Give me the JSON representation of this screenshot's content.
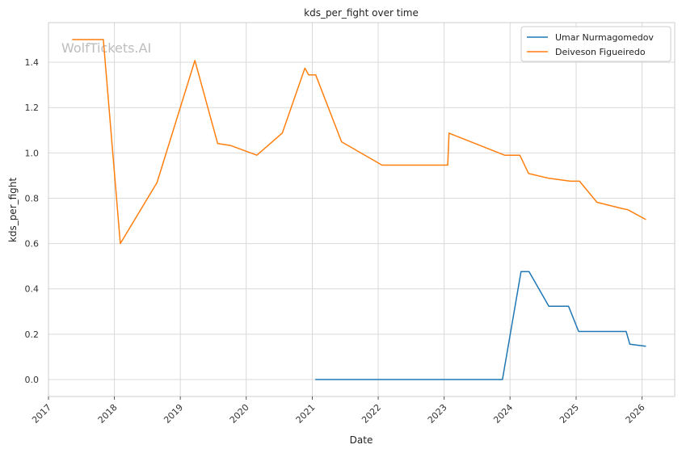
{
  "chart_data": {
    "type": "line",
    "title": "kds_per_fight over time",
    "xlabel": "Date",
    "ylabel": "kds_per_fight",
    "watermark": "WolfTickets.AI",
    "x_ticks": [
      "2017",
      "2018",
      "2019",
      "2020",
      "2021",
      "2022",
      "2023",
      "2024",
      "2025",
      "2026"
    ],
    "y_ticks": [
      "0.0",
      "0.2",
      "0.4",
      "0.6",
      "0.8",
      "1.0",
      "1.2",
      "1.4"
    ],
    "xlim": [
      "2017-01-01",
      "2026-07-01"
    ],
    "ylim": [
      -0.075,
      1.575
    ],
    "grid": true,
    "legend_position": "top-right",
    "series": [
      {
        "name": "Umar Nurmagomedov",
        "color": "#1f77b4",
        "points": [
          [
            "2021-01-20",
            0.0
          ],
          [
            "2023-11-20",
            0.0
          ],
          [
            "2024-03-02",
            0.476
          ],
          [
            "2024-04-15",
            0.476
          ],
          [
            "2024-08-03",
            0.323
          ],
          [
            "2024-11-20",
            0.323
          ],
          [
            "2025-01-15",
            0.212
          ],
          [
            "2025-10-05",
            0.212
          ],
          [
            "2025-10-25",
            0.156
          ],
          [
            "2026-01-20",
            0.147
          ]
        ]
      },
      {
        "name": "Deiveson Figueiredo",
        "color": "#ff7f0e",
        "points": [
          [
            "2017-05-15",
            1.5
          ],
          [
            "2017-11-01",
            1.5
          ],
          [
            "2018-02-03",
            0.6
          ],
          [
            "2018-08-25",
            0.869
          ],
          [
            "2019-03-23",
            1.408
          ],
          [
            "2019-07-27",
            1.041
          ],
          [
            "2019-10-05",
            1.033
          ],
          [
            "2020-02-29",
            0.99
          ],
          [
            "2020-07-19",
            1.088
          ],
          [
            "2020-11-21",
            1.374
          ],
          [
            "2020-12-12",
            1.344
          ],
          [
            "2021-01-20",
            1.344
          ],
          [
            "2021-06-12",
            1.049
          ],
          [
            "2022-01-22",
            0.946
          ],
          [
            "2023-01-21",
            0.946
          ],
          [
            "2023-01-28",
            1.087
          ],
          [
            "2023-12-02",
            0.99
          ],
          [
            "2024-02-24",
            0.99
          ],
          [
            "2024-04-13",
            0.909
          ],
          [
            "2024-08-03",
            0.888
          ],
          [
            "2024-12-01",
            0.875
          ],
          [
            "2025-01-20",
            0.875
          ],
          [
            "2025-04-26",
            0.782
          ],
          [
            "2025-09-15",
            0.754
          ],
          [
            "2025-10-15",
            0.749
          ],
          [
            "2026-01-20",
            0.707
          ]
        ]
      }
    ]
  }
}
